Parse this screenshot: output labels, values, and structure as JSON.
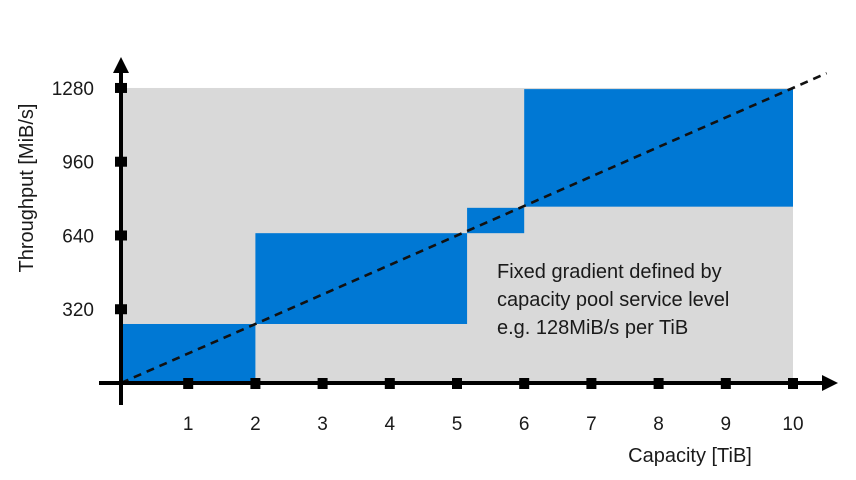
{
  "chart_data": {
    "type": "area",
    "title": "",
    "xlabel": "Capacity [TiB]",
    "ylabel": "Throughput [MiB/s]",
    "xlim": [
      0,
      10
    ],
    "ylim": [
      0,
      1280
    ],
    "x_ticks": [
      1,
      2,
      3,
      4,
      5,
      6,
      7,
      8,
      9,
      10
    ],
    "y_ticks": [
      320,
      640,
      960,
      1280
    ],
    "grid": false,
    "legend": "none",
    "background_fill": {
      "x_range": [
        0,
        10
      ],
      "y_range": [
        0,
        1280
      ],
      "color": "#d9d9d9"
    },
    "blocks": [
      {
        "x_range": [
          0,
          2
        ],
        "y_range": [
          0,
          256
        ],
        "color": "#0078d4"
      },
      {
        "x_range": [
          2,
          5.15
        ],
        "y_range": [
          256,
          650
        ],
        "color": "#0078d4"
      },
      {
        "x_range": [
          5.15,
          6
        ],
        "y_range": [
          650,
          760
        ],
        "color": "#0078d4"
      },
      {
        "x_range": [
          6,
          10
        ],
        "y_range": [
          765,
          1275
        ],
        "color": "#0078d4"
      }
    ],
    "reference_line": {
      "style": "dashed",
      "color": "#111111",
      "gradient_mib_per_tib": 128,
      "points": [
        [
          0,
          0
        ],
        [
          10,
          1280
        ]
      ],
      "extends_to_x": 10.5
    },
    "annotation": {
      "lines": [
        "Fixed gradient defined by",
        "capacity pool service level",
        "e.g. 128MiB/s per TiB"
      ],
      "anchor": "lower-right"
    }
  },
  "colors": {
    "block": "#0078d4",
    "background": "#d9d9d9",
    "axis": "#000000"
  }
}
